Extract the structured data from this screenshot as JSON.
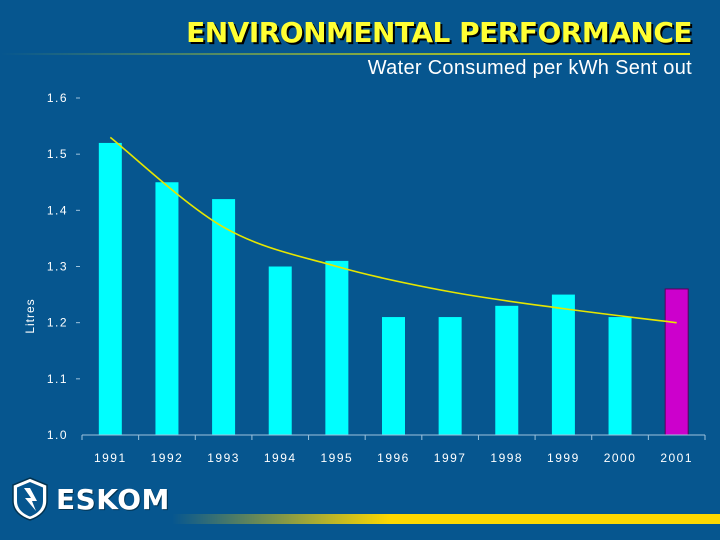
{
  "header": {
    "title": "ENVIRONMENTAL PERFORMANCE",
    "subtitle": "Water Consumed per kWh Sent out"
  },
  "branding": {
    "logo_text": "ESKOM"
  },
  "colors": {
    "background": "#06568f",
    "title": "#ffff33",
    "bar": "#00ffff",
    "bar_highlight": "#cc00cc",
    "trendline": "#e6e600",
    "band": "#ffd800"
  },
  "chart_data": {
    "type": "bar",
    "title": "Water Consumed per kWh Sent out",
    "xlabel": "",
    "ylabel": "Litres",
    "categories": [
      "1991",
      "1992",
      "1993",
      "1994",
      "1995",
      "1996",
      "1997",
      "1998",
      "1999",
      "2000",
      "2001"
    ],
    "values": [
      1.52,
      1.45,
      1.42,
      1.3,
      1.31,
      1.21,
      1.21,
      1.23,
      1.25,
      1.21,
      1.26
    ],
    "highlight_index": 10,
    "ylim": [
      1.0,
      1.6
    ],
    "yticks": [
      "1.0",
      "1.1",
      "1.2",
      "1.3",
      "1.4",
      "1.5",
      "1.6"
    ],
    "trendline": {
      "type": "exponential decay",
      "x": [
        "1991",
        "1993",
        "1995",
        "1997",
        "1999",
        "2001"
      ],
      "values": [
        1.53,
        1.37,
        1.3,
        1.255,
        1.225,
        1.2
      ]
    },
    "grid": false,
    "legend": "none"
  }
}
